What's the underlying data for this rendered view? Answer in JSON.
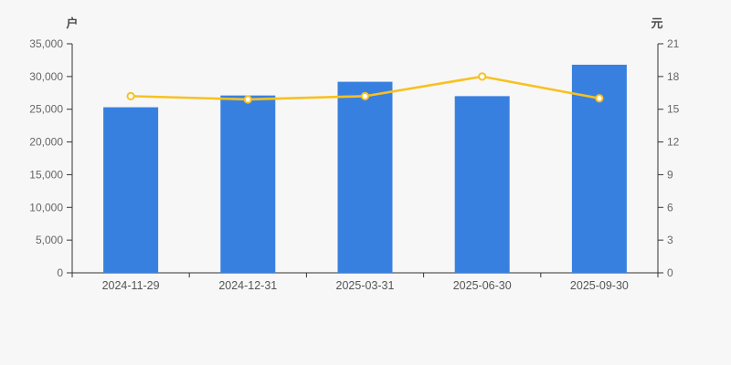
{
  "chart_data": {
    "type": "bar+line",
    "title": "",
    "legend": "none",
    "grid": "off",
    "categories": [
      "2024-11-29",
      "2024-12-31",
      "2025-03-31",
      "2025-06-30",
      "2025-09-30"
    ],
    "bar_series": {
      "axis": "left",
      "color": "#3880e0",
      "values": [
        25300,
        27100,
        29200,
        27000,
        31800
      ]
    },
    "line_series": {
      "axis": "right",
      "color": "#f8c120",
      "marker_fill": "#ffffff",
      "values": [
        16.2,
        15.9,
        16.2,
        18.0,
        16.0
      ]
    },
    "left_axis": {
      "unit_label": "户",
      "min": 0,
      "max": 35000,
      "tick_step": 5000,
      "tick_labels": [
        "0",
        "5,000",
        "10,000",
        "15,000",
        "20,000",
        "25,000",
        "30,000",
        "35,000"
      ]
    },
    "right_axis": {
      "unit_label": "元",
      "min": 0,
      "max": 21,
      "tick_step": 3,
      "tick_labels": [
        "0",
        "3",
        "6",
        "9",
        "12",
        "15",
        "18",
        "21"
      ]
    },
    "colors": {
      "background": "#f7f7f7",
      "axis_line": "#333333",
      "tick_text": "#666666",
      "category_text": "#555555",
      "unit_text": "#4c4c4c"
    }
  }
}
